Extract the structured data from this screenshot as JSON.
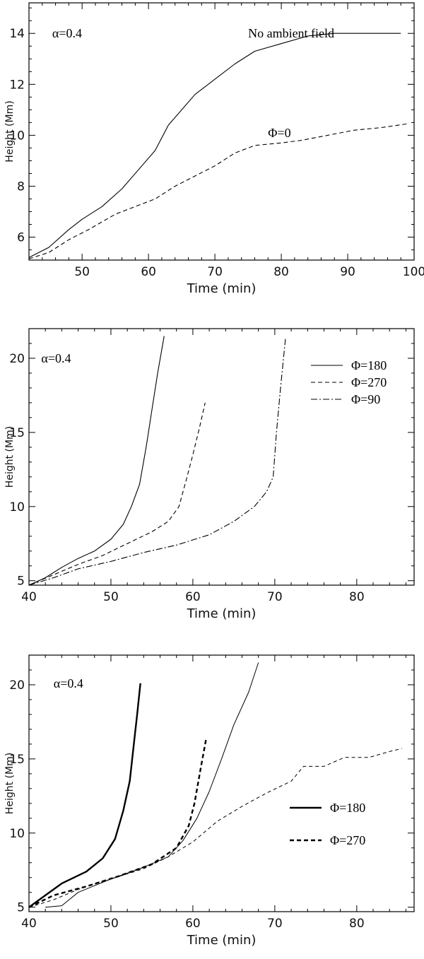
{
  "chart_data": [
    {
      "type": "line",
      "xlabel": "Time (min)",
      "ylabel": "Height (Mm)",
      "xlim": [
        42,
        100
      ],
      "ylim": [
        5.1,
        15.2
      ],
      "xticks": [
        "50",
        "60",
        "70",
        "80",
        "90",
        "100"
      ],
      "yticks": [
        "6",
        "8",
        "10",
        "12",
        "14"
      ],
      "annotations": [
        {
          "text": "α=0.4",
          "at": [
            45.5,
            14
          ]
        },
        {
          "text": "No ambient field",
          "at": [
            75,
            14
          ]
        },
        {
          "text": "Φ=0",
          "at": [
            78,
            10.1
          ]
        }
      ],
      "series": [
        {
          "style": "solid",
          "points": [
            [
              42,
              5.2
            ],
            [
              45,
              5.6
            ],
            [
              48,
              6.3
            ],
            [
              50,
              6.7
            ],
            [
              53,
              7.2
            ],
            [
              56,
              7.9
            ],
            [
              59,
              8.8
            ],
            [
              61,
              9.4
            ],
            [
              63,
              10.4
            ],
            [
              65,
              11.0
            ],
            [
              67,
              11.6
            ],
            [
              70,
              12.2
            ],
            [
              73,
              12.8
            ],
            [
              76,
              13.3
            ],
            [
              80,
              13.6
            ],
            [
              84,
              13.9
            ],
            [
              88,
              14.0
            ],
            [
              93,
              14.0
            ],
            [
              98,
              14.0
            ]
          ]
        },
        {
          "style": "dashed",
          "points": [
            [
              42,
              5.15
            ],
            [
              45,
              5.4
            ],
            [
              48,
              5.9
            ],
            [
              51,
              6.3
            ],
            [
              55,
              6.9
            ],
            [
              58,
              7.2
            ],
            [
              61,
              7.5
            ],
            [
              64,
              8.0
            ],
            [
              67,
              8.4
            ],
            [
              70,
              8.8
            ],
            [
              73,
              9.3
            ],
            [
              76,
              9.6
            ],
            [
              80,
              9.7
            ],
            [
              83,
              9.8
            ],
            [
              87,
              10.0
            ],
            [
              91,
              10.2
            ],
            [
              95,
              10.3
            ],
            [
              99,
              10.45
            ]
          ]
        }
      ]
    },
    {
      "type": "line",
      "xlabel": "Time (min)",
      "ylabel": "Height (Mm)",
      "xlim": [
        40,
        87
      ],
      "ylim": [
        4.7,
        22
      ],
      "xticks": [
        "40",
        "50",
        "60",
        "70",
        "80"
      ],
      "yticks": [
        "5",
        "10",
        "15",
        "20"
      ],
      "annotations": [
        {
          "text": "α=0.4",
          "at": [
            41.5,
            20
          ]
        }
      ],
      "series": [
        {
          "name": "Φ=180",
          "style": "solid",
          "points": [
            [
              40,
              4.7
            ],
            [
              42,
              5.2
            ],
            [
              44,
              5.9
            ],
            [
              46,
              6.5
            ],
            [
              48,
              7.0
            ],
            [
              50,
              7.8
            ],
            [
              51.5,
              8.8
            ],
            [
              52.5,
              10.0
            ],
            [
              53.5,
              11.5
            ],
            [
              54.3,
              14.0
            ],
            [
              55,
              16.5
            ],
            [
              55.7,
              19.0
            ],
            [
              56.5,
              21.5
            ]
          ]
        },
        {
          "name": "Φ=270",
          "style": "dashed",
          "points": [
            [
              40,
              4.7
            ],
            [
              43,
              5.4
            ],
            [
              46,
              6.1
            ],
            [
              49,
              6.7
            ],
            [
              52,
              7.5
            ],
            [
              55,
              8.3
            ],
            [
              57,
              9.0
            ],
            [
              58.3,
              10.0
            ],
            [
              59.2,
              11.8
            ],
            [
              60,
              13.5
            ],
            [
              60.8,
              15.3
            ],
            [
              61.5,
              17.0
            ]
          ]
        },
        {
          "name": "Φ=90",
          "style": "dashdot",
          "points": [
            [
              40,
              4.7
            ],
            [
              43,
              5.2
            ],
            [
              46,
              5.8
            ],
            [
              50,
              6.3
            ],
            [
              54,
              6.9
            ],
            [
              58,
              7.4
            ],
            [
              62,
              8.1
            ],
            [
              65,
              9.0
            ],
            [
              67.5,
              10.0
            ],
            [
              69,
              11.0
            ],
            [
              69.8,
              12.0
            ],
            [
              70.2,
              15.0
            ],
            [
              70.7,
              18.0
            ],
            [
              71.3,
              21.3
            ]
          ]
        }
      ],
      "legend": {
        "placement": "top-right",
        "entries": [
          "Φ=180",
          "Φ=270",
          "Φ=90"
        ]
      }
    },
    {
      "type": "line",
      "xlabel": "Time (min)",
      "ylabel": "Height (Mm)",
      "xlim": [
        40,
        87
      ],
      "ylim": [
        4.7,
        22
      ],
      "xticks": [
        "40",
        "50",
        "60",
        "70",
        "80"
      ],
      "yticks": [
        "5",
        "10",
        "15",
        "20"
      ],
      "annotations": [
        {
          "text": "α=0.4",
          "at": [
            43,
            20.1
          ]
        }
      ],
      "series": [
        {
          "name": "Φ=180",
          "style": "solid-thick",
          "points": [
            [
              40,
              5.0
            ],
            [
              42,
              5.8
            ],
            [
              44,
              6.6
            ],
            [
              47,
              7.4
            ],
            [
              49,
              8.3
            ],
            [
              50.5,
              9.6
            ],
            [
              51.5,
              11.5
            ],
            [
              52.3,
              13.5
            ],
            [
              52.8,
              16.0
            ],
            [
              53.2,
              18.0
            ],
            [
              53.6,
              20.1
            ]
          ]
        },
        {
          "name": "Φ=270",
          "style": "dashed-thick",
          "points": [
            [
              40,
              5.0
            ],
            [
              43,
              5.8
            ],
            [
              47,
              6.4
            ],
            [
              51,
              7.1
            ],
            [
              55,
              7.9
            ],
            [
              58,
              9.0
            ],
            [
              59.5,
              10.5
            ],
            [
              60.2,
              12.0
            ],
            [
              61,
              14.5
            ],
            [
              61.6,
              16.3
            ]
          ]
        },
        {
          "style": "solid-thin",
          "points": [
            [
              42,
              5.0
            ],
            [
              44,
              5.1
            ],
            [
              46,
              6.0
            ],
            [
              50,
              6.9
            ],
            [
              54,
              7.7
            ],
            [
              57,
              8.4
            ],
            [
              58.8,
              9.5
            ],
            [
              60.5,
              11.0
            ],
            [
              62,
              12.8
            ],
            [
              63.5,
              15.0
            ],
            [
              65,
              17.3
            ],
            [
              66.8,
              19.5
            ],
            [
              68,
              21.5
            ]
          ]
        },
        {
          "style": "dashed-thin",
          "points": [
            [
              40,
              5.0
            ],
            [
              43,
              5.5
            ],
            [
              46,
              6.2
            ],
            [
              50,
              6.9
            ],
            [
              54,
              7.6
            ],
            [
              57,
              8.4
            ],
            [
              60,
              9.4
            ],
            [
              63,
              10.8
            ],
            [
              66,
              11.8
            ],
            [
              69,
              12.7
            ],
            [
              72,
              13.5
            ],
            [
              73.5,
              14.5
            ],
            [
              76,
              14.5
            ],
            [
              78.5,
              15.1
            ],
            [
              81.5,
              15.1
            ],
            [
              84,
              15.5
            ],
            [
              85.5,
              15.7
            ]
          ]
        }
      ],
      "legend": {
        "placement": "right",
        "entries": [
          "Φ=180",
          "Φ=270"
        ]
      }
    }
  ]
}
